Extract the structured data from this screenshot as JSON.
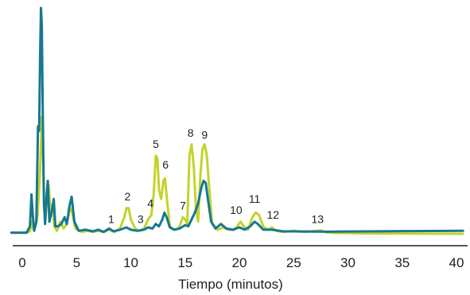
{
  "chart_data": {
    "type": "line",
    "title": "",
    "xlabel": "Tiempo (minutos)",
    "ylabel": "",
    "xlim": [
      -1,
      40.6
    ],
    "ylim": [
      0,
      100
    ],
    "x_ticks": [
      0,
      5,
      10,
      15,
      20,
      25,
      30,
      35,
      40
    ],
    "x_tick_labels": [
      "0",
      "5",
      "10",
      "15",
      "20",
      "25",
      "30",
      "35",
      "40"
    ],
    "grid": false,
    "legend": "none",
    "series": [
      {
        "color": "#c3d32a",
        "points": [
          [
            -1,
            1.2
          ],
          [
            0.4,
            1.2
          ],
          [
            0.7,
            1.8
          ],
          [
            0.9,
            6
          ],
          [
            1.0,
            3
          ],
          [
            1.2,
            4
          ],
          [
            1.4,
            8
          ],
          [
            1.55,
            20
          ],
          [
            1.65,
            30
          ],
          [
            1.75,
            44
          ],
          [
            1.8,
            52
          ],
          [
            1.9,
            40
          ],
          [
            2.0,
            12
          ],
          [
            2.15,
            8
          ],
          [
            2.3,
            18
          ],
          [
            2.45,
            22
          ],
          [
            2.6,
            8
          ],
          [
            2.8,
            14
          ],
          [
            2.95,
            4
          ],
          [
            3.2,
            2
          ],
          [
            3.5,
            6
          ],
          [
            3.8,
            3
          ],
          [
            4.1,
            5
          ],
          [
            4.4,
            12
          ],
          [
            4.6,
            10
          ],
          [
            4.9,
            3
          ],
          [
            5.5,
            1.5
          ],
          [
            6,
            2
          ],
          [
            6.5,
            1.5
          ],
          [
            7,
            2
          ],
          [
            7.5,
            1.5
          ],
          [
            8,
            2.5
          ],
          [
            8.5,
            1.5
          ],
          [
            9,
            3
          ],
          [
            9.4,
            8
          ],
          [
            9.6,
            12
          ],
          [
            9.8,
            12
          ],
          [
            10,
            7
          ],
          [
            10.4,
            3
          ],
          [
            10.8,
            2
          ],
          [
            11.2,
            3
          ],
          [
            11.6,
            7
          ],
          [
            11.9,
            9
          ],
          [
            12.1,
            18
          ],
          [
            12.3,
            35
          ],
          [
            12.45,
            34
          ],
          [
            12.6,
            20
          ],
          [
            12.8,
            16
          ],
          [
            13.0,
            24
          ],
          [
            13.15,
            25
          ],
          [
            13.35,
            15
          ],
          [
            13.6,
            4
          ],
          [
            14,
            2.5
          ],
          [
            14.4,
            3
          ],
          [
            14.8,
            8
          ],
          [
            15.0,
            7
          ],
          [
            15.2,
            5
          ],
          [
            15.4,
            35
          ],
          [
            15.6,
            40
          ],
          [
            15.8,
            30
          ],
          [
            16.0,
            12
          ],
          [
            16.2,
            6
          ],
          [
            16.4,
            26
          ],
          [
            16.6,
            38
          ],
          [
            16.8,
            40
          ],
          [
            17.0,
            35
          ],
          [
            17.2,
            22
          ],
          [
            17.5,
            5
          ],
          [
            18,
            2.5
          ],
          [
            18.5,
            3.5
          ],
          [
            19,
            2.5
          ],
          [
            19.5,
            2.5
          ],
          [
            19.8,
            4
          ],
          [
            20.1,
            6
          ],
          [
            20.4,
            4
          ],
          [
            20.8,
            2.5
          ],
          [
            21.2,
            8
          ],
          [
            21.5,
            10
          ],
          [
            21.8,
            9
          ],
          [
            22.2,
            4
          ],
          [
            22.6,
            2.5
          ],
          [
            23,
            3.5
          ],
          [
            23.4,
            2
          ],
          [
            24,
            1.5
          ],
          [
            25,
            2
          ],
          [
            26,
            1.5
          ],
          [
            27,
            2
          ],
          [
            27.5,
            2.2
          ],
          [
            28,
            1.3
          ],
          [
            29,
            1.0
          ],
          [
            30,
            1.0
          ],
          [
            32,
            0.8
          ],
          [
            35,
            0.8
          ],
          [
            38,
            0.7
          ],
          [
            40.6,
            0.7
          ]
        ]
      },
      {
        "color": "#17788f",
        "points": [
          [
            -1,
            1.2
          ],
          [
            0.4,
            1.2
          ],
          [
            0.7,
            4
          ],
          [
            0.85,
            18
          ],
          [
            0.95,
            10
          ],
          [
            1.1,
            2
          ],
          [
            1.3,
            6
          ],
          [
            1.45,
            48
          ],
          [
            1.55,
            46
          ],
          [
            1.65,
            80
          ],
          [
            1.72,
            100
          ],
          [
            1.8,
            92
          ],
          [
            1.9,
            50
          ],
          [
            2.0,
            14
          ],
          [
            2.1,
            5
          ],
          [
            2.25,
            18
          ],
          [
            2.35,
            24
          ],
          [
            2.5,
            6
          ],
          [
            2.7,
            10
          ],
          [
            2.9,
            16
          ],
          [
            3.05,
            4
          ],
          [
            3.3,
            4
          ],
          [
            3.6,
            5
          ],
          [
            3.9,
            8
          ],
          [
            4.1,
            5
          ],
          [
            4.35,
            13
          ],
          [
            4.55,
            17
          ],
          [
            4.8,
            6
          ],
          [
            5.2,
            2
          ],
          [
            5.8,
            2.5
          ],
          [
            6.5,
            1.8
          ],
          [
            7,
            2.5
          ],
          [
            7.5,
            1.5
          ],
          [
            8,
            3
          ],
          [
            8.4,
            1.8
          ],
          [
            9,
            2.5
          ],
          [
            9.6,
            3.5
          ],
          [
            10,
            2.5
          ],
          [
            10.6,
            2
          ],
          [
            11.2,
            2.5
          ],
          [
            11.6,
            3.5
          ],
          [
            12,
            3
          ],
          [
            12.3,
            5
          ],
          [
            12.6,
            4
          ],
          [
            12.9,
            7
          ],
          [
            13.1,
            10
          ],
          [
            13.3,
            8
          ],
          [
            13.6,
            3.5
          ],
          [
            14,
            2.5
          ],
          [
            14.5,
            3
          ],
          [
            15,
            4.5
          ],
          [
            15.3,
            4
          ],
          [
            15.6,
            7
          ],
          [
            15.9,
            10
          ],
          [
            16.2,
            14
          ],
          [
            16.5,
            21
          ],
          [
            16.7,
            24
          ],
          [
            16.9,
            23
          ],
          [
            17.1,
            16
          ],
          [
            17.4,
            6
          ],
          [
            17.8,
            3
          ],
          [
            18.3,
            5
          ],
          [
            18.8,
            3
          ],
          [
            19.4,
            2.5
          ],
          [
            20,
            3.5
          ],
          [
            20.5,
            2.5
          ],
          [
            21,
            4
          ],
          [
            21.4,
            6
          ],
          [
            21.7,
            5
          ],
          [
            22.2,
            2.5
          ],
          [
            23,
            2.5
          ],
          [
            24,
            1.8
          ],
          [
            26,
            1.7
          ],
          [
            28,
            1.6
          ],
          [
            30,
            1.7
          ],
          [
            33,
            1.8
          ],
          [
            36,
            1.9
          ],
          [
            40.6,
            2.0
          ]
        ]
      }
    ],
    "peak_labels": [
      {
        "text": "1",
        "x": 8.2,
        "y": 4
      },
      {
        "text": "2",
        "x": 9.7,
        "y": 14
      },
      {
        "text": "3",
        "x": 10.9,
        "y": 4
      },
      {
        "text": "4",
        "x": 11.8,
        "y": 11
      },
      {
        "text": "5",
        "x": 12.3,
        "y": 37
      },
      {
        "text": "6",
        "x": 13.2,
        "y": 28
      },
      {
        "text": "7",
        "x": 14.8,
        "y": 10
      },
      {
        "text": "8",
        "x": 15.5,
        "y": 42
      },
      {
        "text": "9",
        "x": 16.8,
        "y": 41
      },
      {
        "text": "10",
        "x": 19.7,
        "y": 8
      },
      {
        "text": "11",
        "x": 21.4,
        "y": 13
      },
      {
        "text": "12",
        "x": 23.1,
        "y": 6
      },
      {
        "text": "13",
        "x": 27.2,
        "y": 4
      }
    ]
  }
}
